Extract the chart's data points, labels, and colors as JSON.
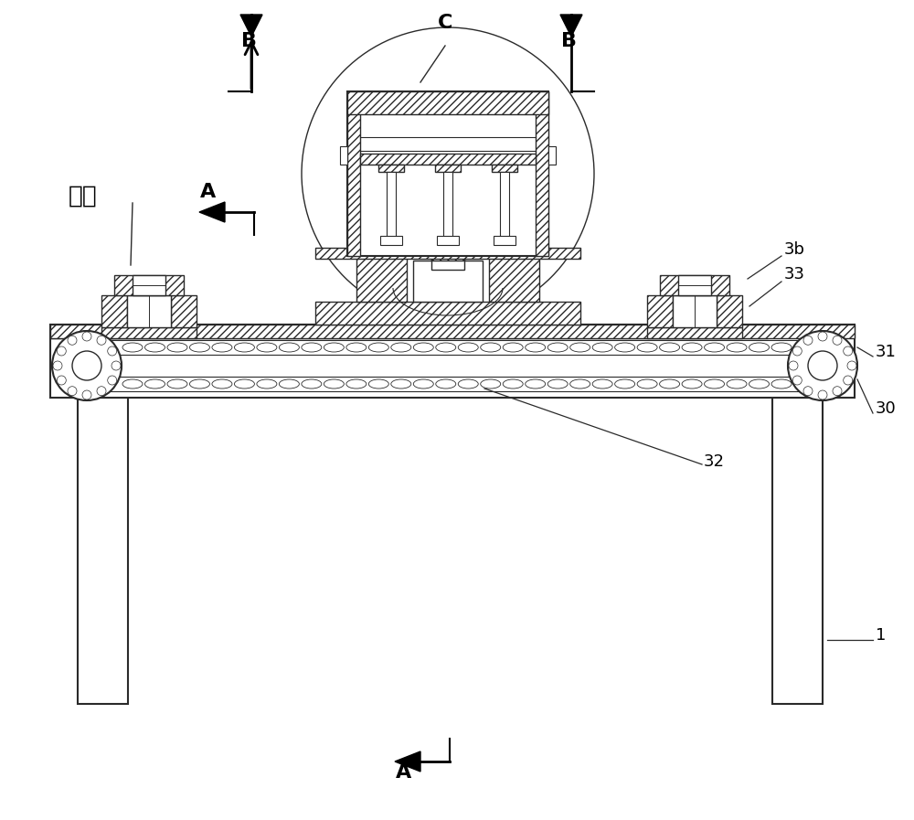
{
  "bg_color": "#ffffff",
  "line_color": "#2a2a2a",
  "figsize": [
    10.0,
    8.97
  ],
  "dpi": 100,
  "labels": {
    "A": "A",
    "B": "B",
    "C": "C",
    "falan": "法兰",
    "1": "1",
    "30": "30",
    "31": "31",
    "32": "32",
    "33": "33",
    "3b": "3b"
  }
}
